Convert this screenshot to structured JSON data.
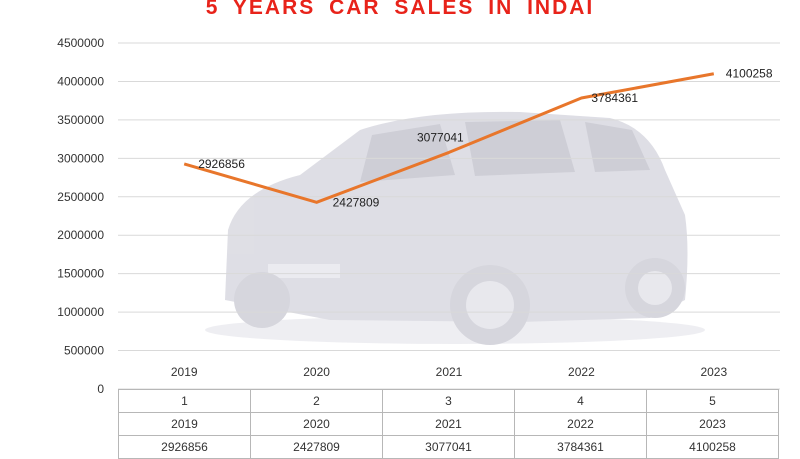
{
  "chart_data": {
    "type": "line",
    "title": "5 YEARS  CAR SALES  IN INDAI",
    "categories": [
      "2019",
      "2020",
      "2021",
      "2022",
      "2023"
    ],
    "series": [
      {
        "values": [
          2926856,
          2427809,
          3077041,
          3784361,
          4100258
        ]
      }
    ],
    "data_labels": [
      "2926856",
      "2427809",
      "3077041",
      "3784361",
      "4100258"
    ],
    "ylim": [
      0,
      4500000
    ],
    "yticks": [
      "0",
      "500000",
      "1000000",
      "1500000",
      "2000000",
      "2500000",
      "3000000",
      "3500000",
      "4000000",
      "4500000"
    ],
    "grid": true,
    "line_color": "#e8762b",
    "title_color": "#e8231a",
    "background_image": "suv-car-photo",
    "table": {
      "rows": [
        [
          "1",
          "2",
          "3",
          "4",
          "5"
        ],
        [
          "2019",
          "2020",
          "2021",
          "2022",
          "2023"
        ],
        [
          "2926856",
          "2427809",
          "3077041",
          "3784361",
          "4100258"
        ]
      ]
    }
  }
}
